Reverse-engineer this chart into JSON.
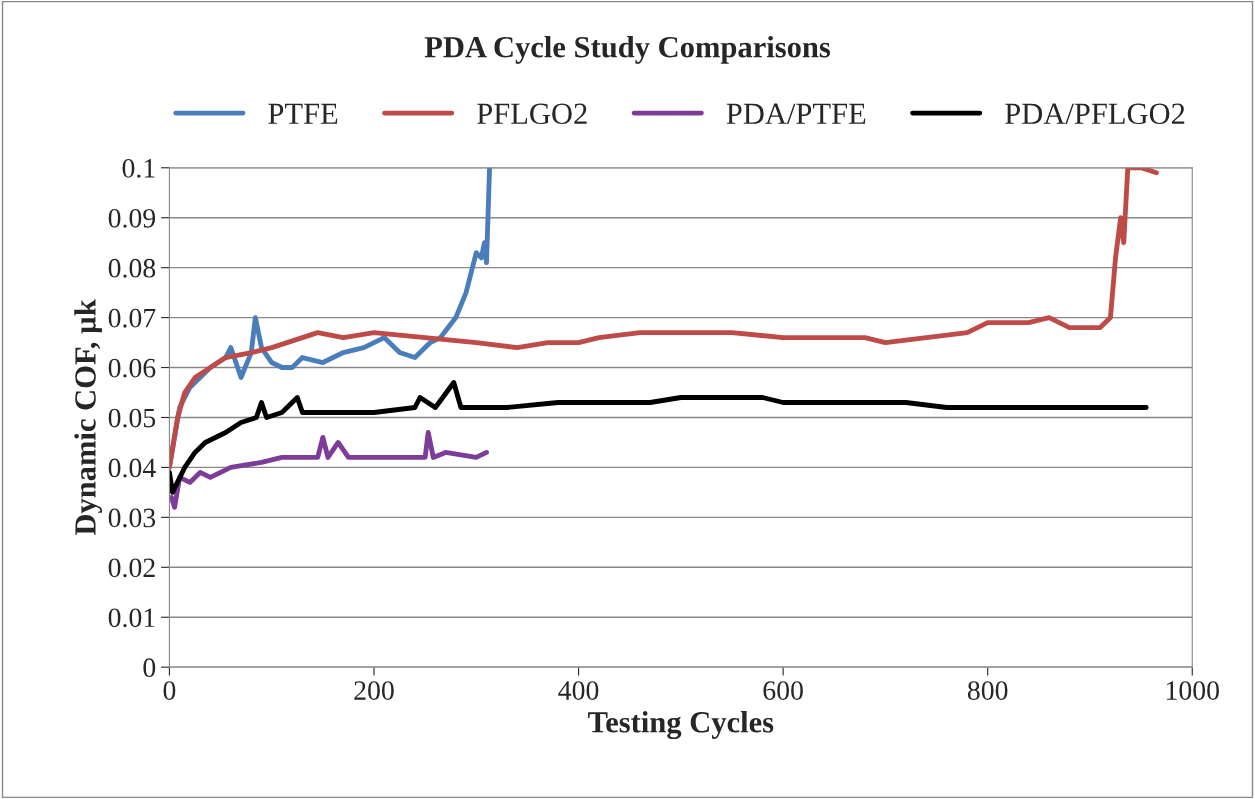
{
  "chart_data": {
    "type": "line",
    "title": "PDA Cycle Study Comparisons",
    "xlabel": "Testing Cycles",
    "ylabel": "Dynamic COF, µk",
    "xlim": [
      0,
      1000
    ],
    "xticks": [
      0,
      200,
      400,
      600,
      800,
      1000
    ],
    "ylim": [
      0,
      0.1
    ],
    "yticks": [
      0,
      0.01,
      0.02,
      0.03,
      0.04,
      0.05,
      0.06,
      0.07,
      0.08,
      0.09,
      0.1
    ],
    "grid": "y",
    "legend": "top",
    "marker": "none",
    "line_style": "solid",
    "series": [
      {
        "name": "PTFE",
        "color": "#4a7ebb",
        "x": [
          0,
          10,
          20,
          40,
          55,
          60,
          70,
          80,
          84,
          90,
          100,
          110,
          120,
          130,
          150,
          170,
          190,
          200,
          210,
          225,
          240,
          255,
          265,
          280,
          290,
          300,
          305,
          308,
          310,
          313
        ],
        "values": [
          0.04,
          0.052,
          0.056,
          0.06,
          0.062,
          0.064,
          0.058,
          0.063,
          0.07,
          0.064,
          0.061,
          0.06,
          0.06,
          0.062,
          0.061,
          0.063,
          0.064,
          0.065,
          0.066,
          0.063,
          0.062,
          0.065,
          0.066,
          0.07,
          0.075,
          0.083,
          0.082,
          0.085,
          0.081,
          0.1
        ]
      },
      {
        "name": "PFLGO2",
        "color": "#be4b48",
        "x": [
          0,
          8,
          15,
          25,
          40,
          55,
          80,
          100,
          115,
          130,
          145,
          170,
          200,
          250,
          300,
          340,
          370,
          400,
          420,
          460,
          550,
          600,
          680,
          700,
          740,
          780,
          800,
          840,
          860,
          880,
          910,
          920,
          925,
          930,
          933,
          937,
          950,
          965
        ],
        "values": [
          0.04,
          0.05,
          0.055,
          0.058,
          0.06,
          0.062,
          0.063,
          0.064,
          0.065,
          0.066,
          0.067,
          0.066,
          0.067,
          0.066,
          0.065,
          0.064,
          0.065,
          0.065,
          0.066,
          0.067,
          0.067,
          0.066,
          0.066,
          0.065,
          0.066,
          0.067,
          0.069,
          0.069,
          0.07,
          0.068,
          0.068,
          0.07,
          0.082,
          0.09,
          0.085,
          0.1,
          0.1,
          0.099
        ]
      },
      {
        "name": "PDA/PTFE",
        "color": "#7d3c98",
        "x": [
          2,
          5,
          10,
          20,
          30,
          40,
          60,
          90,
          110,
          145,
          150,
          155,
          165,
          175,
          250,
          253,
          258,
          270,
          300,
          310
        ],
        "values": [
          0.034,
          0.032,
          0.038,
          0.037,
          0.039,
          0.038,
          0.04,
          0.041,
          0.042,
          0.042,
          0.046,
          0.042,
          0.045,
          0.042,
          0.042,
          0.047,
          0.042,
          0.043,
          0.042,
          0.043
        ]
      },
      {
        "name": "PDA/PFLGO2",
        "color": "#000000",
        "x": [
          0,
          3,
          15,
          25,
          35,
          55,
          70,
          85,
          90,
          95,
          110,
          125,
          130,
          200,
          240,
          245,
          260,
          278,
          285,
          330,
          380,
          470,
          500,
          580,
          600,
          720,
          760,
          955
        ],
        "values": [
          0.039,
          0.035,
          0.04,
          0.043,
          0.045,
          0.047,
          0.049,
          0.05,
          0.053,
          0.05,
          0.051,
          0.054,
          0.051,
          0.051,
          0.052,
          0.054,
          0.052,
          0.057,
          0.052,
          0.052,
          0.053,
          0.053,
          0.054,
          0.054,
          0.053,
          0.053,
          0.052,
          0.052
        ]
      }
    ]
  }
}
